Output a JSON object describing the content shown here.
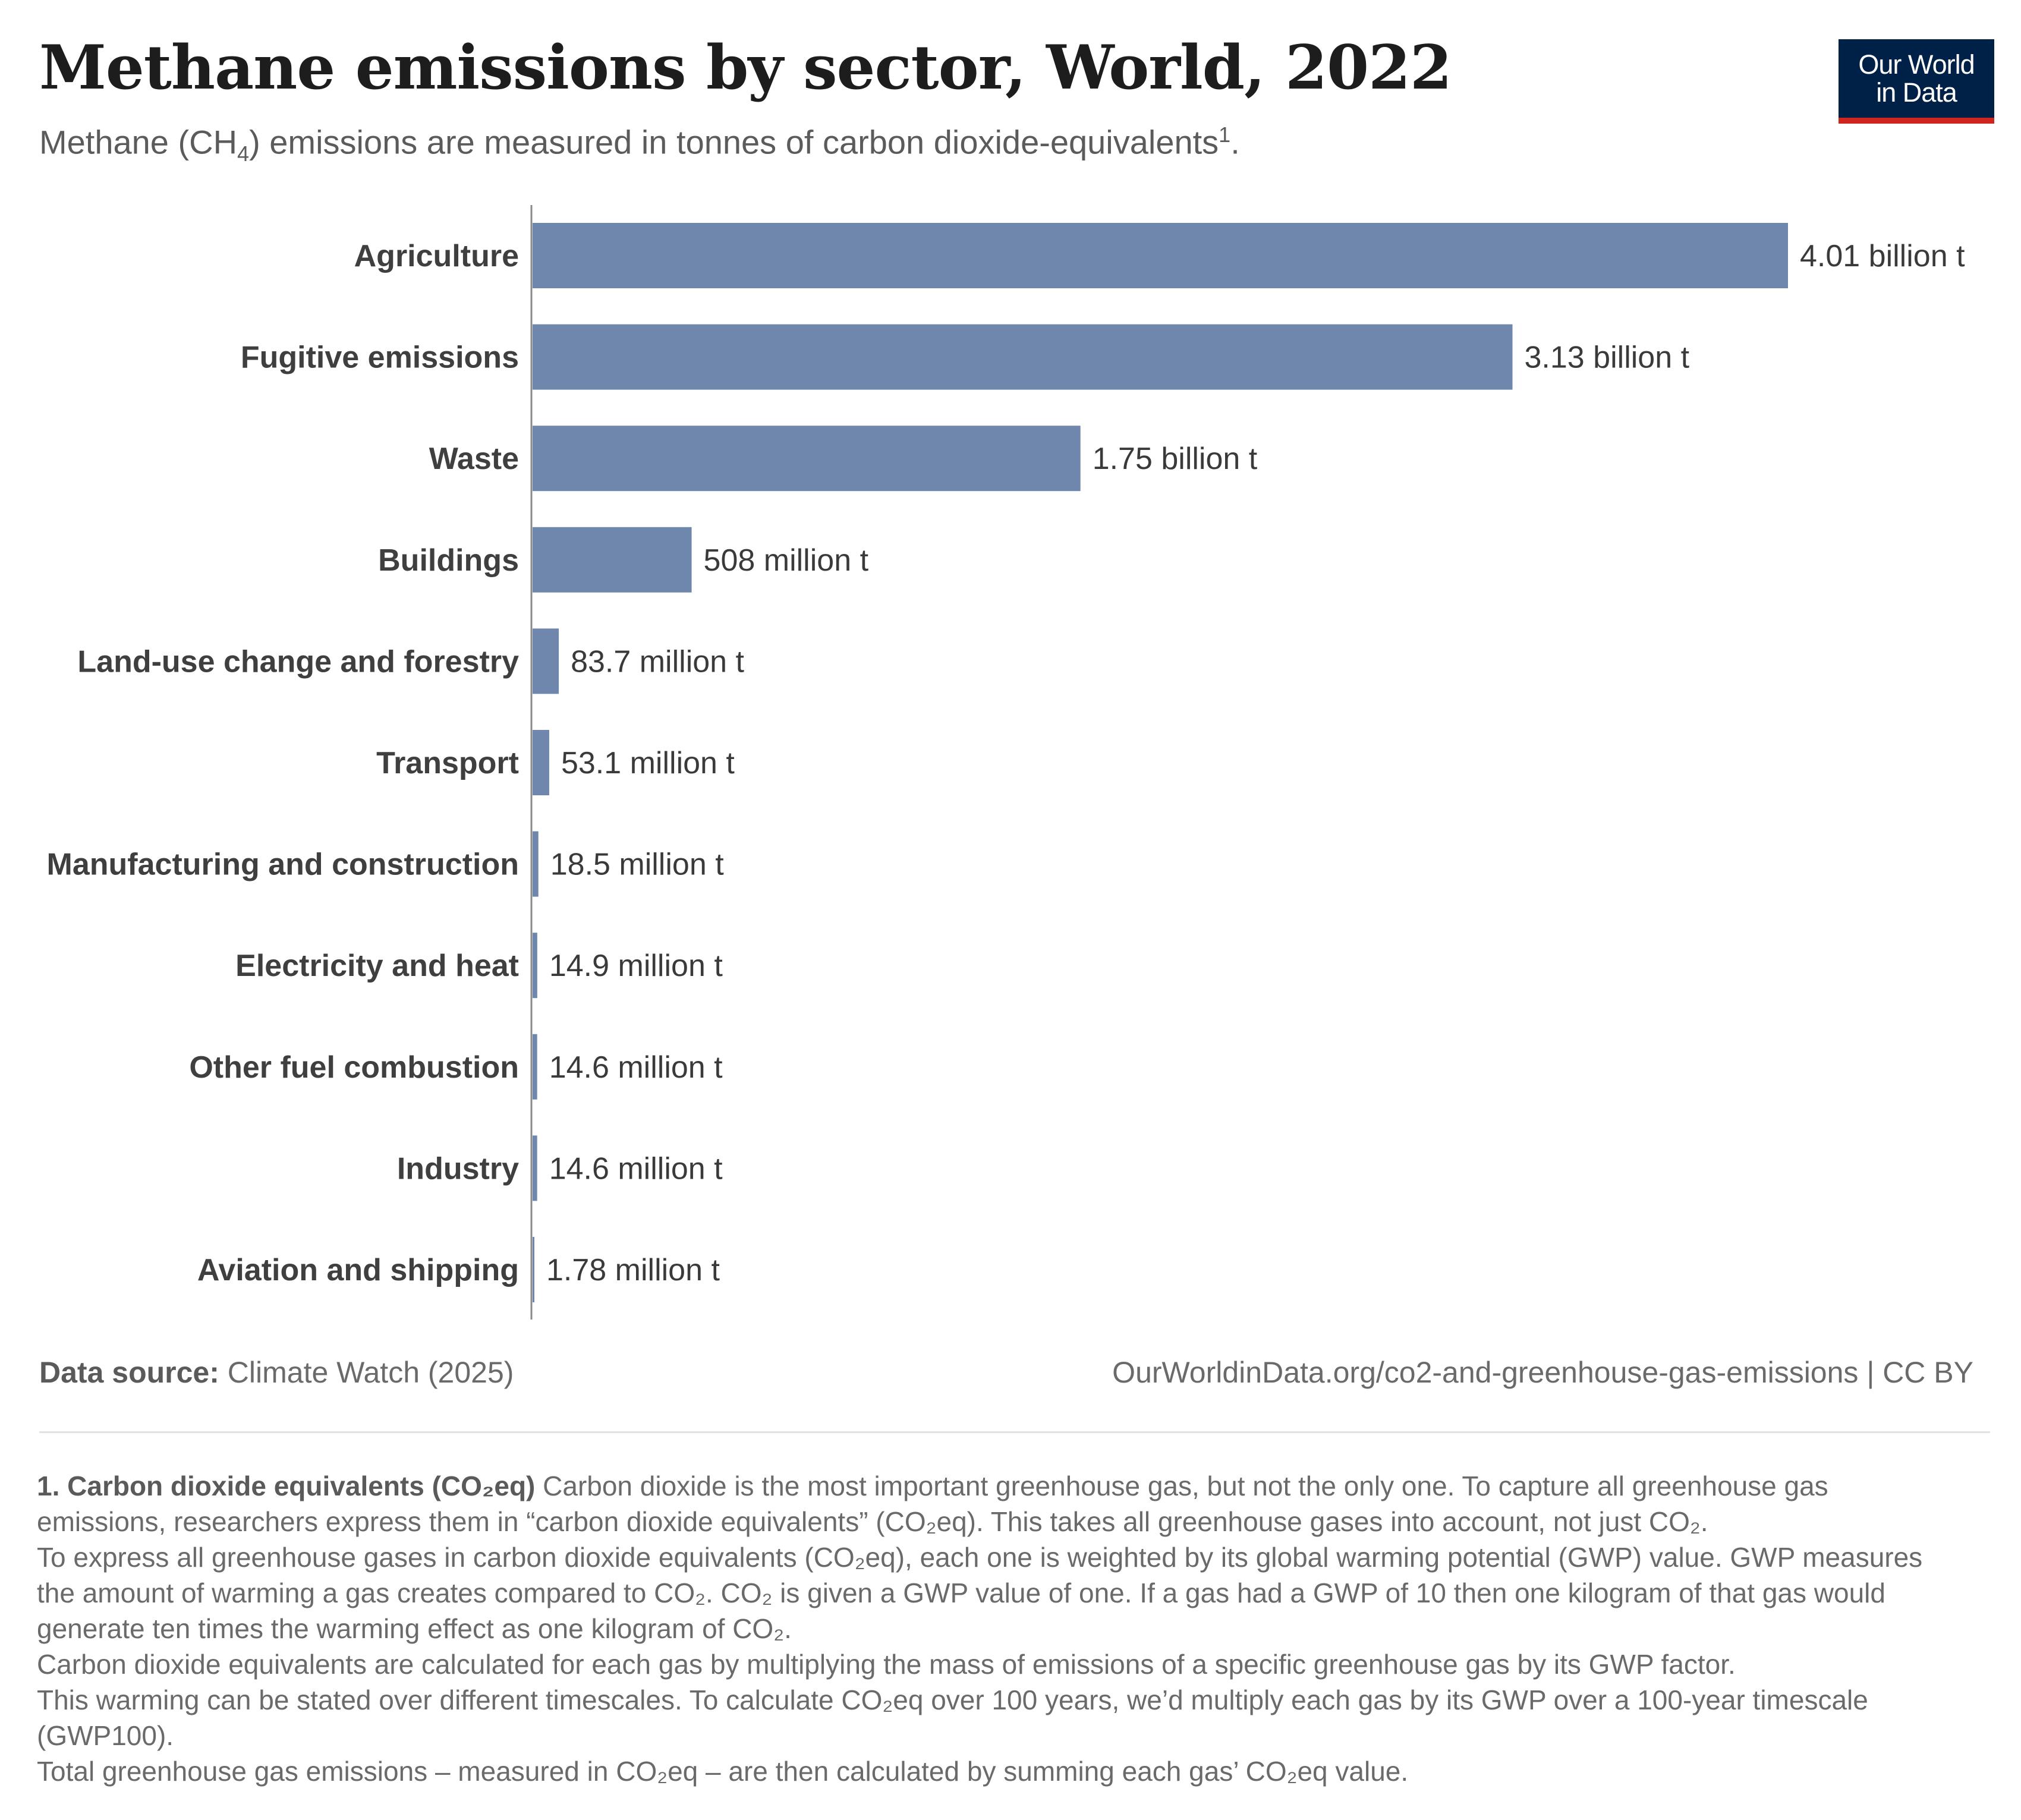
{
  "header": {
    "title": "Methane emissions by sector, World, 2022",
    "subtitle_pre": "Methane (CH",
    "subtitle_sub": "4",
    "subtitle_mid": ") emissions are measured in tonnes of carbon dioxide-equivalents",
    "subtitle_sup": "1",
    "subtitle_end": "."
  },
  "logo": {
    "line1": "Our World",
    "line2": "in Data"
  },
  "chart_data": {
    "type": "bar",
    "orientation": "horizontal",
    "title": "Methane emissions by sector, World, 2022",
    "unit": "t",
    "bar_color": "#6f87ad",
    "categories": [
      "Agriculture",
      "Fugitive emissions",
      "Waste",
      "Buildings",
      "Land-use change and forestry",
      "Transport",
      "Manufacturing and construction",
      "Electricity and heat",
      "Other fuel combustion",
      "Industry",
      "Aviation and shipping"
    ],
    "values": [
      4010000000,
      3130000000,
      1750000000,
      508000000,
      83700000,
      53100000,
      18500000,
      14900000,
      14600000,
      14600000,
      1780000
    ],
    "value_labels": [
      "4.01 billion t",
      "3.13 billion t",
      "1.75 billion t",
      "508 million t",
      "83.7 million t",
      "53.1 million t",
      "18.5 million t",
      "14.9 million t",
      "14.6 million t",
      "14.6 million t",
      "1.78 million t"
    ],
    "xlim": [
      0,
      4010000000
    ],
    "grid": false
  },
  "footer": {
    "source_label": "Data source:",
    "source_text": " Climate Watch (2025)",
    "url_text": "OurWorldinData.org/co2-and-greenhouse-gas-emissions | CC BY"
  },
  "notes": {
    "heading": "1. Carbon dioxide equivalents (CO₂eq)",
    "p1_rest": " Carbon dioxide is the most important greenhouse gas, but not the only one. To capture all greenhouse gas emissions, researchers express them in “carbon dioxide equivalents” (CO₂eq). This takes all greenhouse gases into account, not just CO₂.",
    "p2": "To express all greenhouse gases in carbon dioxide equivalents (CO₂eq), each one is weighted by its global warming potential (GWP) value. GWP measures the amount of warming a gas creates compared to CO₂. CO₂ is given a GWP value of one. If a gas had a GWP of 10 then one kilogram of that gas would generate ten times the warming effect as one kilogram of CO₂.",
    "p3": "Carbon dioxide equivalents are calculated for each gas by multiplying the mass of emissions of a specific greenhouse gas by its GWP factor.",
    "p4": "This warming can be stated over different timescales. To calculate CO₂eq over 100 years, we’d multiply each gas by its GWP over a 100-year timescale (GWP100).",
    "p5": "Total greenhouse gas emissions – measured in CO₂eq – are then calculated by summing each gas’ CO₂eq value."
  }
}
